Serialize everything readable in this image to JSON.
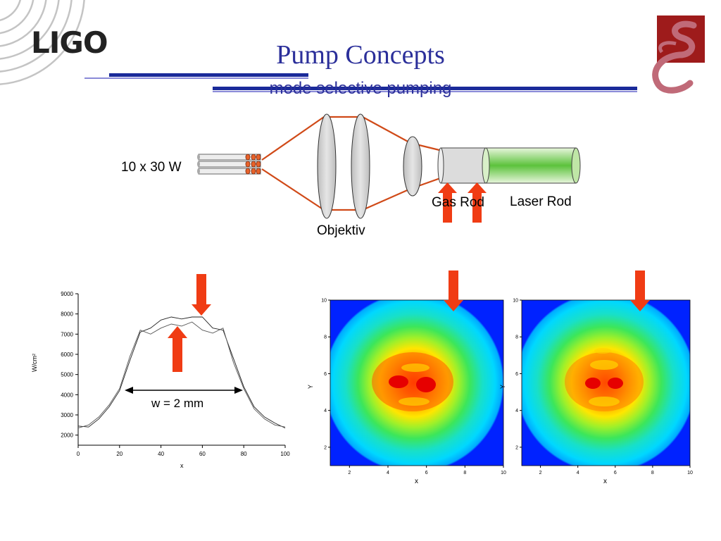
{
  "slide": {
    "title": "Pump Concepts",
    "subtitle": "mode selective pumping",
    "logo_text": "LIGO",
    "colors": {
      "title": "#2b2f9a",
      "arrow": "#f03c14",
      "beam": "#d04a18",
      "rule_dark": "#1a2a9a",
      "rule_light": "#8a8ad8",
      "emblem_bg": "#9e1b1b"
    }
  },
  "setup": {
    "power_label": "10 x 30 W",
    "objective_label": "Objektiv",
    "gas_rod_label": "Gas Rod",
    "laser_rod_label": "Laser Rod"
  },
  "profile_plot": {
    "ylabel": "W/cm²",
    "xlabel": "x",
    "width_label": "w = 2 mm",
    "x_ticks": [
      "0",
      "20",
      "40",
      "60",
      "80",
      "100"
    ],
    "y_ticks": [
      "2000",
      "3000",
      "4000",
      "5000",
      "6000",
      "7000",
      "8000",
      "9000"
    ]
  },
  "maps": [
    {
      "xlabel": "x",
      "ylabel": "Y",
      "x_ticks": [
        "2",
        "4",
        "6",
        "8",
        "10"
      ],
      "y_ticks": [
        "2",
        "4",
        "6",
        "8",
        "10"
      ]
    },
    {
      "xlabel": "x",
      "ylabel": "Y",
      "x_ticks": [
        "2",
        "4",
        "6",
        "8",
        "10"
      ],
      "y_ticks": [
        "2",
        "4",
        "6",
        "8",
        "10"
      ]
    }
  ],
  "chart_data": [
    {
      "type": "line",
      "xlabel": "x",
      "ylabel": "W/cm²",
      "xlim": [
        0,
        100
      ],
      "ylim": [
        1500,
        9000
      ],
      "series": [
        {
          "values_x": [
            0,
            5,
            10,
            15,
            20,
            25,
            30,
            35,
            40,
            45,
            50,
            55,
            60,
            65,
            70,
            75,
            80,
            85,
            90,
            95,
            100
          ],
          "values_y": [
            2450,
            2400,
            2800,
            3400,
            4200,
            5700,
            7100,
            7300,
            7700,
            7850,
            7750,
            7850,
            7850,
            7300,
            7200,
            5800,
            4400,
            3400,
            2900,
            2600,
            2350
          ]
        },
        {
          "values_x": [
            0,
            5,
            10,
            15,
            20,
            25,
            30,
            35,
            40,
            45,
            50,
            55,
            60,
            65,
            70,
            75,
            80,
            85,
            90,
            95,
            100
          ],
          "values_y": [
            2350,
            2500,
            2900,
            3500,
            4300,
            5900,
            7200,
            7000,
            7300,
            7500,
            7400,
            7600,
            7200,
            7050,
            7300,
            5600,
            4300,
            3300,
            2800,
            2500,
            2400
          ]
        }
      ]
    },
    {
      "type": "heatmap",
      "xlabel": "x",
      "ylabel": "Y",
      "xlim": [
        1,
        10
      ],
      "ylim": [
        1,
        10
      ]
    },
    {
      "type": "heatmap",
      "xlabel": "x",
      "ylabel": "Y",
      "xlim": [
        1,
        10
      ],
      "ylim": [
        1,
        10
      ]
    }
  ]
}
